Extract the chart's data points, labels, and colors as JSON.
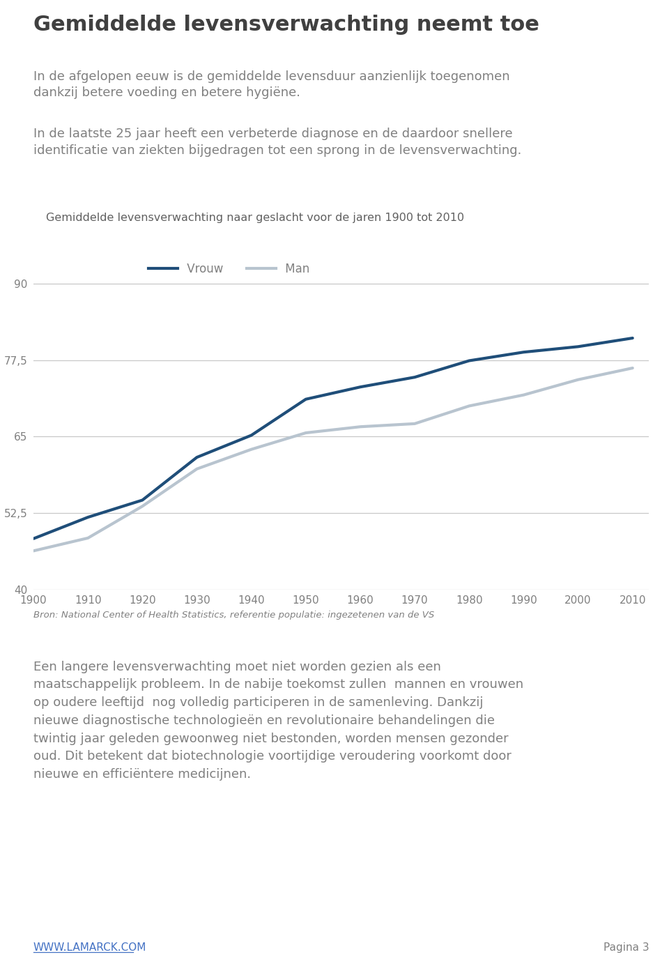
{
  "title": "Gemiddelde levensverwachting neemt toe",
  "intro_text1": "In de afgelopen eeuw is de gemiddelde levensduur aanzienlijk toegenomen\ndankzij betere voeding en betere hygiëne.",
  "intro_text2": "In de laatste 25 jaar heeft een verbeterde diagnose en de daardoor snellere\nidentificatie van ziekten bijgedragen tot een sprong in de levensverwachting.",
  "chart_title": "Gemiddelde levensverwachting naar geslacht voor de jaren 1900 tot 2010",
  "source_text": "Bron: National Center of Health Statistics, referentie populatie: ingezetenen van de VS",
  "body_text": "Een langere levensverwachting moet niet worden gezien als een\nmaatschappelijk probleem. In de nabije toekomst zullen  mannen en vrouwen\nop oudere leeftijd  nog volledig participeren in de samenleving. Dankzij\nnieuwe diagnostische technologieën en revolutionaire behandelingen die\ntwintig jaar geleden gewoonweg niet bestonden, worden mensen gezonder\noud. Dit betekent dat biotechnologie voortijdige veroudering voorkomt door\nnieuwe en efficiëntere medicijnen.",
  "footer_left": "WWW.LAMARCK.COM",
  "footer_right": "Pagina 3",
  "years": [
    1900,
    1910,
    1920,
    1930,
    1940,
    1950,
    1960,
    1970,
    1980,
    1990,
    2000,
    2010
  ],
  "vrouw": [
    48.3,
    51.8,
    54.6,
    61.6,
    65.2,
    71.1,
    73.1,
    74.7,
    77.4,
    78.8,
    79.7,
    81.1
  ],
  "man": [
    46.3,
    48.4,
    53.6,
    59.7,
    62.9,
    65.6,
    66.6,
    67.1,
    70.0,
    71.8,
    74.3,
    76.2
  ],
  "vrouw_color": "#1F4E79",
  "man_color": "#B8C4CF",
  "ylim": [
    40,
    93
  ],
  "yticks": [
    40,
    52.5,
    65,
    77.5,
    90
  ],
  "ytick_labels": [
    "40",
    "52,5",
    "65",
    "77,5",
    "90"
  ],
  "title_color": "#404040",
  "text_color": "#808080",
  "chart_title_color": "#606060",
  "background_color": "#ffffff",
  "line_width": 3.0,
  "grid_color": "#C8C8C8",
  "footer_link_color": "#4472C4"
}
